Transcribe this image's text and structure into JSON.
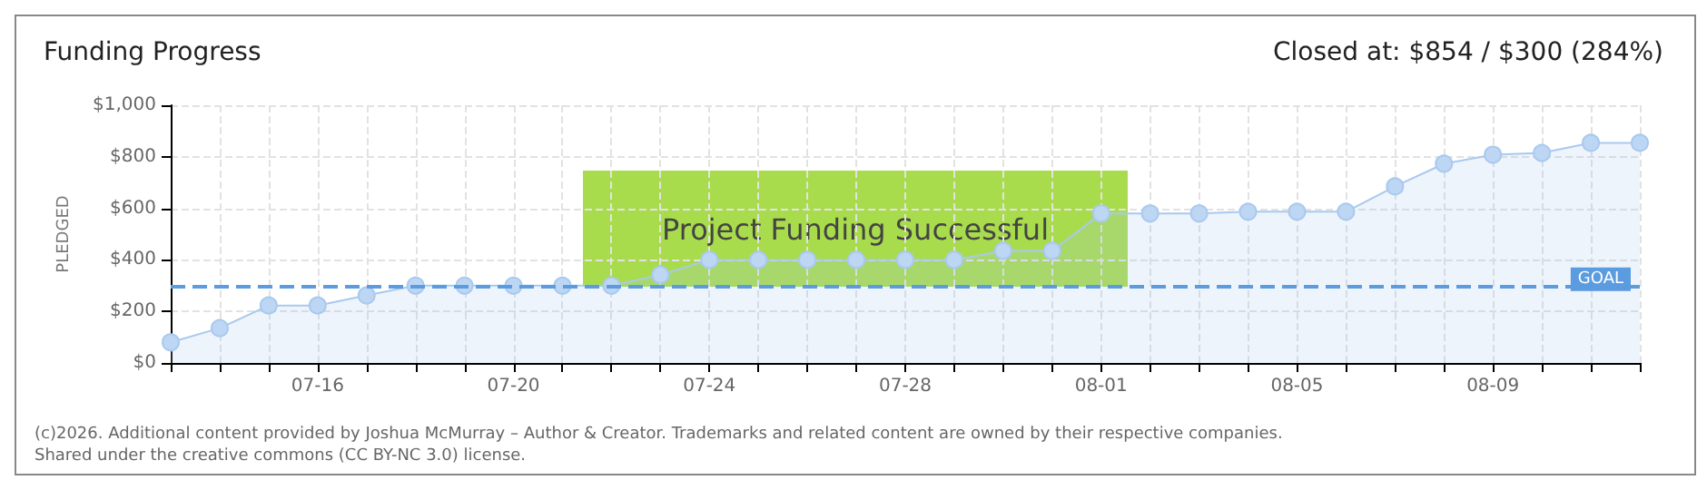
{
  "chart_data": {
    "type": "area",
    "title": "Funding Progress",
    "subtitle": "Closed at: $854 / $300 (284%)",
    "ylabel": "PLEDGED",
    "categories": [
      null,
      null,
      null,
      "07-16",
      null,
      null,
      null,
      "07-20",
      null,
      null,
      null,
      "07-24",
      null,
      null,
      null,
      "07-28",
      null,
      null,
      null,
      "08-01",
      null,
      null,
      null,
      "08-05",
      null,
      null,
      null,
      "08-09",
      null,
      null,
      null
    ],
    "series": [
      {
        "color": "#a9c9ee",
        "values": [
          80,
          135,
          223,
          223,
          262,
          300,
          300,
          300,
          300,
          300,
          342,
          400,
          400,
          400,
          400,
          400,
          400,
          435,
          435,
          580,
          580,
          580,
          587,
          587,
          587,
          685,
          773,
          808,
          815,
          854,
          854
        ]
      }
    ],
    "ylim": [
      0,
      1000
    ],
    "yticks": [
      {
        "value": 0,
        "label": "$0"
      },
      {
        "value": 200,
        "label": "$200"
      },
      {
        "value": 400,
        "label": "$400"
      },
      {
        "value": 600,
        "label": "$600"
      },
      {
        "value": 800,
        "label": "$800"
      },
      {
        "value": 1000,
        "label": "$1,000"
      }
    ],
    "grid": true,
    "marker": "circle",
    "ref_lines": [
      {
        "axis": "y",
        "value": 300,
        "label": "GOAL",
        "color": "#5b9be0",
        "line_style": "dashed"
      }
    ],
    "annotations": [
      "Project Funding Successful",
      "(c)2026. Additional content provided by Joshua McMurray – Author & Creator. Trademarks and related content are owned by their respective companies.",
      "Shared under the creative commons (CC BY-NC 3.0) license."
    ]
  }
}
